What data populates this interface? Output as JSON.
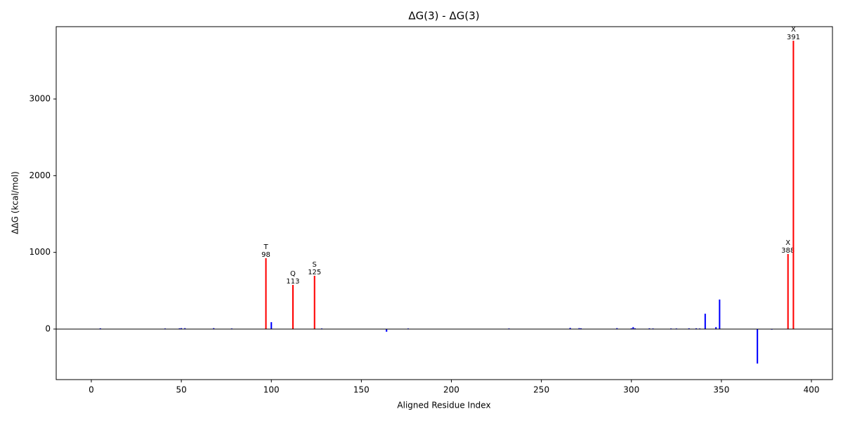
{
  "chart_data": {
    "type": "bar",
    "title": "ΔG(3) - ΔG(3)",
    "x_label": "Aligned Residue Index",
    "y_label": "ΔΔG (kcal/mol)",
    "x": [
      5,
      41,
      49,
      50,
      52,
      68,
      78,
      97,
      100,
      112,
      124,
      128,
      164,
      176,
      232,
      266,
      271,
      272,
      292,
      300,
      301,
      302,
      310,
      312,
      322,
      325,
      332,
      336,
      338,
      341,
      347,
      349,
      370,
      378,
      387,
      390
    ],
    "values": [
      10,
      8,
      10,
      12,
      12,
      12,
      8,
      924,
      90,
      576,
      695,
      8,
      -35,
      8,
      8,
      15,
      12,
      10,
      12,
      10,
      25,
      10,
      10,
      8,
      8,
      8,
      10,
      10,
      8,
      200,
      25,
      385,
      -450,
      -8,
      979,
      3760
    ],
    "colors": [
      "#0000ff",
      "#0000ff",
      "#0000ff",
      "#0000ff",
      "#0000ff",
      "#0000ff",
      "#0000ff",
      "#ff0000",
      "#0000ff",
      "#ff0000",
      "#ff0000",
      "#0000ff",
      "#0000ff",
      "#0000ff",
      "#0000ff",
      "#0000ff",
      "#0000ff",
      "#0000ff",
      "#0000ff",
      "#0000ff",
      "#0000ff",
      "#0000ff",
      "#0000ff",
      "#0000ff",
      "#0000ff",
      "#0000ff",
      "#0000ff",
      "#0000ff",
      "#0000ff",
      "#0000ff",
      "#0000ff",
      "#0000ff",
      "#0000ff",
      "#0000ff",
      "#ff0000",
      "#ff0000"
    ],
    "annotations": [
      null,
      null,
      null,
      null,
      null,
      null,
      null,
      {
        "letter": "T",
        "number": 98
      },
      null,
      {
        "letter": "Q",
        "number": 113
      },
      {
        "letter": "S",
        "number": 125
      },
      null,
      null,
      null,
      null,
      null,
      null,
      null,
      null,
      null,
      null,
      null,
      null,
      null,
      null,
      null,
      null,
      null,
      null,
      null,
      null,
      null,
      null,
      null,
      {
        "letter": "X",
        "number": 388
      },
      {
        "letter": "X",
        "number": 391
      }
    ],
    "bar_width": 0.8,
    "xlim": [
      -19.5,
      411.7
    ],
    "ylim": [
      -659,
      3943
    ],
    "xticks": [
      0,
      50,
      100,
      150,
      200,
      250,
      300,
      350,
      400
    ],
    "yticks": [
      0,
      1000,
      2000,
      3000
    ],
    "zero_line": true
  }
}
